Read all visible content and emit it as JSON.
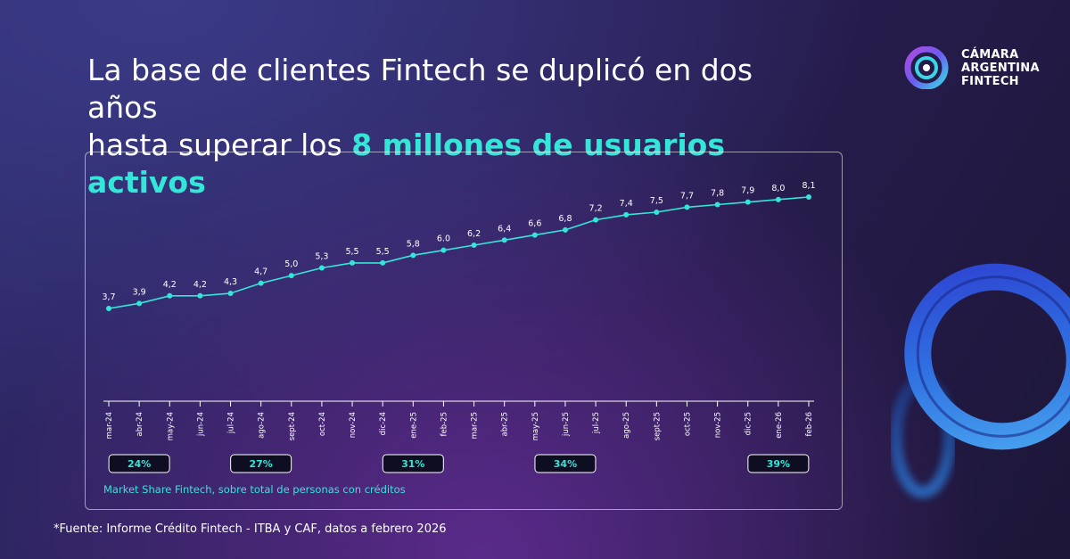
{
  "headline": {
    "line1": "La base de clientes Fintech se duplicó en dos años",
    "line2_prefix": "hasta superar los ",
    "line2_highlight": "8 millones de usuarios activos"
  },
  "logo": {
    "icon": "camara-fintech-logo-icon",
    "line1": "CÁMARA",
    "line2": "ARGENTINA",
    "line3": "FINTECH"
  },
  "colors": {
    "accent": "#34e6d8",
    "line": "#34e6d8",
    "badge_bg": "#0e0d22"
  },
  "chart_data": {
    "type": "line",
    "categories": [
      "mar-24",
      "abr-24",
      "may-24",
      "jun-24",
      "jul-24",
      "ago-24",
      "sept-24",
      "oct-24",
      "nov-24",
      "dic-24",
      "ene-25",
      "feb-25",
      "mar-25",
      "abr-25",
      "may-25",
      "jun-25",
      "jul-25",
      "ago-25",
      "sept-25",
      "oct-25",
      "nov-25",
      "dic-25",
      "ene-26",
      "feb-26"
    ],
    "values": [
      3.7,
      3.9,
      4.2,
      4.2,
      4.3,
      4.7,
      5.0,
      5.3,
      5.5,
      5.5,
      5.8,
      6.0,
      6.2,
      6.4,
      6.6,
      6.8,
      7.2,
      7.4,
      7.5,
      7.7,
      7.8,
      7.9,
      8.0,
      8.1
    ],
    "data_labels": [
      "3,7",
      "3,9",
      "4,2",
      "4,2",
      "4,3",
      "4,7",
      "5,0",
      "5,3",
      "5,5",
      "5,5",
      "5,8",
      "6.0",
      "6,2",
      "6,4",
      "6,6",
      "6,8",
      "7,2",
      "7,4",
      "7,5",
      "7,7",
      "7,8",
      "7,9",
      "8,0",
      "8,1"
    ],
    "ylim": [
      3.0,
      9.0
    ],
    "grid": false,
    "market_share": [
      {
        "category": "abr-24",
        "label": "24%"
      },
      {
        "category": "ago-24",
        "label": "27%"
      },
      {
        "category": "ene-25",
        "label": "31%"
      },
      {
        "category": "jun-25",
        "label": "34%"
      },
      {
        "category": "ene-26",
        "label": "39%"
      }
    ],
    "market_share_note": "Market Share Fintech, sobre total de personas con créditos"
  },
  "footer": {
    "source": "*Fuente: Informe Crédito Fintech - ITBA y CAF, datos a febrero 2026"
  }
}
